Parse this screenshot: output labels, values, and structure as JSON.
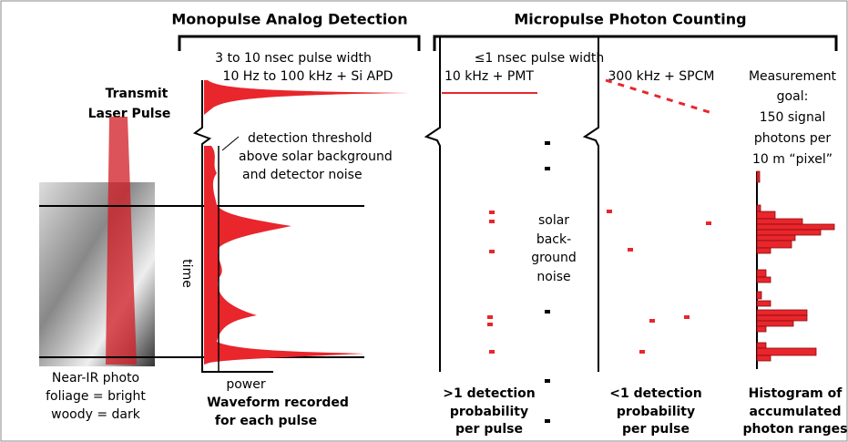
{
  "sections": {
    "monopulse": "Monopulse Analog Detection",
    "micropulse": "Micropulse Photon Counting"
  },
  "monopulse": {
    "pulse_width": "3 to 10 nsec pulse width",
    "rate": "10 Hz to 100 kHz + Si APD",
    "threshold": [
      "detection threshold",
      "above solar background",
      "and detector noise"
    ],
    "time_axis": "time",
    "power_axis": "power",
    "caption": [
      "Waveform recorded",
      "for each pulse"
    ]
  },
  "transmit": [
    "Transmit",
    "Laser Pulse"
  ],
  "photo_caption": [
    "Near-IR photo",
    "foliage = bright",
    "woody = dark"
  ],
  "micropulse": {
    "pulse_width": "≤1 nsec pulse width",
    "pmt": {
      "label": "10 kHz + PMT",
      "caption": [
        ">1 detection",
        "probability",
        "per pulse"
      ]
    },
    "spcm": {
      "label": "300 kHz + SPCM",
      "caption": [
        "<1 detection",
        "probability",
        "per pulse"
      ]
    },
    "noise": [
      "solar",
      "back-",
      "ground",
      "noise"
    ],
    "goal": [
      "Measurement",
      "goal:",
      "150 signal",
      "photons per",
      "10 m “pixel”"
    ],
    "histogram_caption": [
      "Histogram of",
      "accumulated",
      "photon ranges"
    ]
  }
}
